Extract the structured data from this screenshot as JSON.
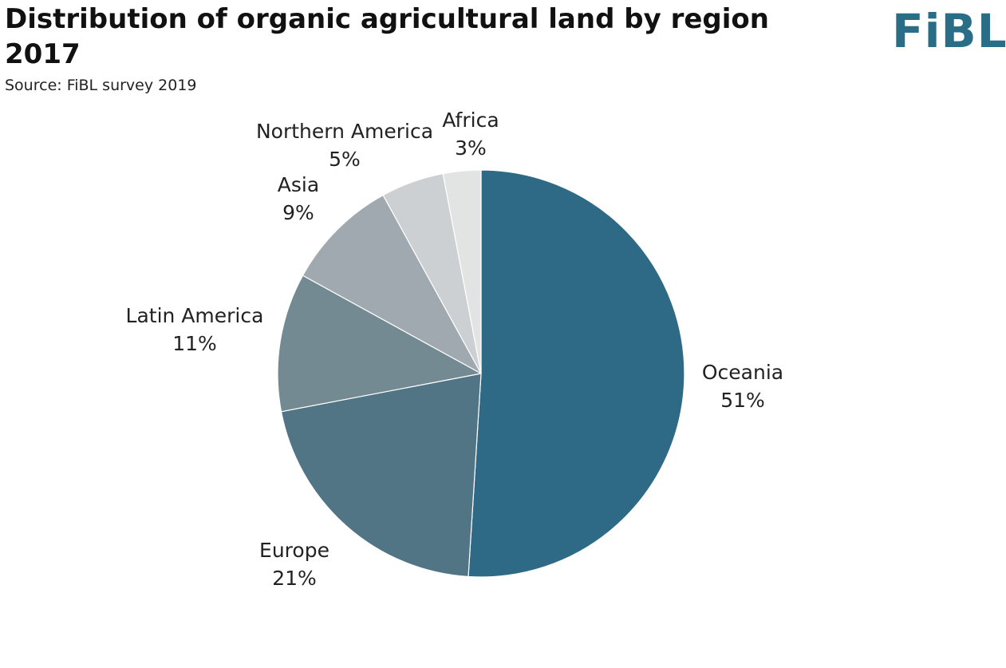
{
  "header": {
    "title": "Distribution of organic agricultural land by region 2017",
    "source": "Source: FiBL survey 2019",
    "logo_text": "FiBL",
    "logo_color": "#2a6d86"
  },
  "chart_data": {
    "type": "pie",
    "title": "Distribution of organic agricultural land by region 2017",
    "start": "12 o'clock",
    "direction": "clockwise",
    "slices": [
      {
        "label": "Oceania",
        "value": 51,
        "value_label": "51%",
        "color": "#2e6a85"
      },
      {
        "label": "Europe",
        "value": 21,
        "value_label": "21%",
        "color": "#527586"
      },
      {
        "label": "Latin America",
        "value": 11,
        "value_label": "11%",
        "color": "#738a92"
      },
      {
        "label": "Asia",
        "value": 9,
        "value_label": "9%",
        "color": "#a0a9af"
      },
      {
        "label": "Northern America",
        "value": 5,
        "value_label": "5%",
        "color": "#cdd0d2"
      },
      {
        "label": "Africa",
        "value": 3,
        "value_label": "3%",
        "color": "#e2e4e4"
      }
    ]
  }
}
